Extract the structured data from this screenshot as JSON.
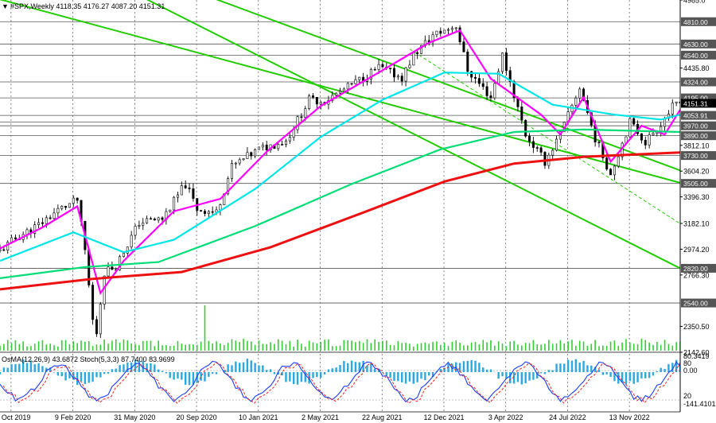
{
  "header": {
    "icon": "chart-arrow-icon",
    "text": "#SPX,Weekly  4118.35 4176.27 4087.20 4151.31"
  },
  "osma_label": "OsMA(12,26,9) 43.6872 Stoch(5,3,3) 87.7400 83.9699",
  "chart_data": {
    "type": "candlestick",
    "symbol": "#SPX",
    "timeframe": "Weekly",
    "ohlc": {
      "open": 4118.35,
      "high": 4176.27,
      "low": 4087.2,
      "close": 4151.31
    },
    "ylim": [
      2142.6,
      4985
    ],
    "xlim": [
      "2019-09-30",
      "2023-02-13"
    ],
    "price_ticks": [
      "4985.0",
      "4810.00",
      "4630.00",
      "4540.00",
      "4435.80",
      "4324.00",
      "4195.00",
      "4151.31",
      "4053.91",
      "3970.00",
      "3890.00",
      "3812.10",
      "3730.00",
      "3604.20",
      "3505.00",
      "3396.30",
      "3182.10",
      "2974.20",
      "2820.00",
      "2766.30",
      "2540.00",
      "2350.50",
      "2142.60"
    ],
    "price_tick_values": [
      4985,
      4810,
      4630,
      4540,
      4435.8,
      4324,
      4195,
      4151.31,
      4053.91,
      3970,
      3890,
      3812.1,
      3730,
      3604.2,
      3505,
      3396.3,
      3182.1,
      2974.2,
      2820,
      2766.3,
      2540,
      2350.5,
      2142.6
    ],
    "levels": [
      4810,
      4630,
      4540,
      4324,
      4195,
      4053.91,
      4000,
      3970,
      3890,
      3730,
      3505,
      2820,
      2540
    ],
    "level_labels": {
      "4810": "4810.00",
      "4630": "4630.00",
      "4540": "4540.00",
      "4324": "4324.00",
      "4195": "4195.00",
      "4053.91": "4053.91",
      "3970": "3970.00",
      "3890": "3890.00",
      "3730": "3730.00",
      "3505": "3505.00",
      "2820": "2820.00",
      "2540": "2540.00"
    },
    "current_price": 4151.31,
    "x_tick_labels": [
      "20 Oct 2019",
      "9 Feb 2020",
      "31 May 2020",
      "20 Sep 2020",
      "10 Jan 2021",
      "2 May 2021",
      "22 Aug 2021",
      "12 Dec 2021",
      "3 Apr 2022",
      "24 Jul 2022",
      "13 Nov 2022"
    ],
    "x_tick_dates": [
      "2019-10-20",
      "2020-02-09",
      "2020-05-31",
      "2020-09-20",
      "2021-01-10",
      "2021-05-02",
      "2021-08-22",
      "2021-12-12",
      "2022-04-03",
      "2022-07-24",
      "2022-11-13"
    ],
    "close_path": [
      [
        "2019-09-30",
        2960
      ],
      [
        "2019-10-28",
        3060
      ],
      [
        "2019-12-09",
        3170
      ],
      [
        "2020-01-13",
        3290
      ],
      [
        "2020-02-17",
        3370
      ],
      [
        "2020-03-02",
        2960
      ],
      [
        "2020-03-16",
        2400
      ],
      [
        "2020-03-23",
        2300
      ],
      [
        "2020-04-06",
        2790
      ],
      [
        "2020-04-27",
        2840
      ],
      [
        "2020-06-08",
        3190
      ],
      [
        "2020-07-20",
        3220
      ],
      [
        "2020-08-31",
        3500
      ],
      [
        "2020-09-21",
        3300
      ],
      [
        "2020-10-26",
        3270
      ],
      [
        "2020-11-23",
        3640
      ],
      [
        "2021-01-11",
        3780
      ],
      [
        "2021-03-01",
        3850
      ],
      [
        "2021-04-12",
        4180
      ],
      [
        "2021-05-10",
        4170
      ],
      [
        "2021-06-21",
        4280
      ],
      [
        "2021-08-16",
        4440
      ],
      [
        "2021-09-27",
        4360
      ],
      [
        "2021-10-18",
        4540
      ],
      [
        "2021-11-22",
        4700
      ],
      [
        "2022-01-03",
        4780
      ],
      [
        "2022-01-24",
        4420
      ],
      [
        "2022-03-07",
        4200
      ],
      [
        "2022-03-28",
        4540
      ],
      [
        "2022-05-09",
        3900
      ],
      [
        "2022-06-13",
        3680
      ],
      [
        "2022-07-11",
        3900
      ],
      [
        "2022-08-15",
        4280
      ],
      [
        "2022-09-12",
        3870
      ],
      [
        "2022-10-10",
        3580
      ],
      [
        "2022-11-14",
        4000
      ],
      [
        "2022-12-12",
        3840
      ],
      [
        "2023-01-09",
        3990
      ],
      [
        "2023-01-30",
        4120
      ],
      [
        "2023-02-13",
        4151
      ]
    ],
    "series": [
      {
        "name": "Fast MA",
        "color": "#ff00ff",
        "points": [
          [
            "2019-09-30",
            2980
          ],
          [
            "2019-12-16",
            3150
          ],
          [
            "2020-02-17",
            3320
          ],
          [
            "2020-03-30",
            2620
          ],
          [
            "2020-05-11",
            2880
          ],
          [
            "2020-08-10",
            3280
          ],
          [
            "2020-11-02",
            3380
          ],
          [
            "2021-01-25",
            3760
          ],
          [
            "2021-05-03",
            4130
          ],
          [
            "2021-08-16",
            4400
          ],
          [
            "2021-11-15",
            4640
          ],
          [
            "2022-01-10",
            4740
          ],
          [
            "2022-03-07",
            4350
          ],
          [
            "2022-06-06",
            4060
          ],
          [
            "2022-07-11",
            3900
          ],
          [
            "2022-08-22",
            4200
          ],
          [
            "2022-10-10",
            3680
          ],
          [
            "2022-12-05",
            3970
          ],
          [
            "2023-01-16",
            3900
          ],
          [
            "2023-02-13",
            4100
          ]
        ]
      },
      {
        "name": "Cyan MA",
        "color": "#00e5e5",
        "points": [
          [
            "2019-09-30",
            2880
          ],
          [
            "2020-02-10",
            3110
          ],
          [
            "2020-05-11",
            2950
          ],
          [
            "2020-08-10",
            3050
          ],
          [
            "2021-01-04",
            3460
          ],
          [
            "2021-05-03",
            3880
          ],
          [
            "2021-08-23",
            4180
          ],
          [
            "2021-12-13",
            4400
          ],
          [
            "2022-03-21",
            4390
          ],
          [
            "2022-06-27",
            4140
          ],
          [
            "2022-10-17",
            4060
          ],
          [
            "2023-01-09",
            4020
          ],
          [
            "2023-02-13",
            4060
          ]
        ]
      },
      {
        "name": "Green MA",
        "color": "#00dd77",
        "points": [
          [
            "2019-09-30",
            2740
          ],
          [
            "2020-03-02",
            2830
          ],
          [
            "2020-07-13",
            2870
          ],
          [
            "2021-01-04",
            3160
          ],
          [
            "2021-06-28",
            3500
          ],
          [
            "2021-12-06",
            3780
          ],
          [
            "2022-04-18",
            3920
          ],
          [
            "2022-08-22",
            3940
          ],
          [
            "2023-02-13",
            3920
          ]
        ]
      },
      {
        "name": "Red MA",
        "color": "#ee1111",
        "points": [
          [
            "2019-09-30",
            2650
          ],
          [
            "2020-03-16",
            2735
          ],
          [
            "2020-08-24",
            2790
          ],
          [
            "2021-02-01",
            2990
          ],
          [
            "2021-07-19",
            3270
          ],
          [
            "2021-12-13",
            3520
          ],
          [
            "2022-04-18",
            3665
          ],
          [
            "2022-08-22",
            3720
          ],
          [
            "2023-02-13",
            3755
          ]
        ]
      }
    ],
    "channel_lines": [
      [
        [
          "2019-09-30",
          4990
        ],
        [
          "2023-02-13",
          3510
        ]
      ],
      [
        [
          "2020-10-26",
          4990
        ],
        [
          "2023-02-13",
          3610
        ]
      ],
      [
        [
          "2020-06-22",
          4990
        ],
        [
          "2023-02-13",
          2820
        ]
      ]
    ],
    "dashed_line": [
      [
        "2021-10-11",
        4590
      ],
      [
        "2023-02-13",
        3180
      ]
    ],
    "volume_spike_date": "2020-10-05"
  }
}
